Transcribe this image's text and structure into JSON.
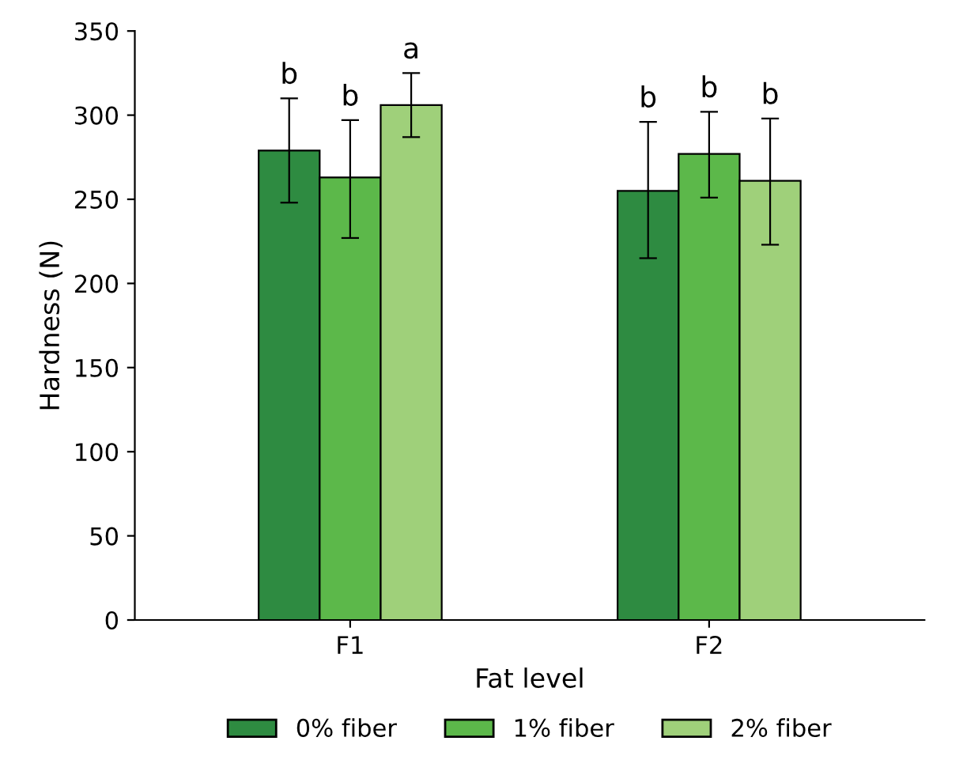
{
  "chart_data": {
    "type": "bar",
    "xlabel": "Fat level",
    "ylabel": "Hardness (N)",
    "categories": [
      "F1",
      "F2"
    ],
    "series": [
      {
        "name": "0% fiber",
        "color": "#2e8b41",
        "values": [
          279,
          255
        ],
        "errors": [
          [
            248,
            310
          ],
          [
            215,
            296
          ]
        ]
      },
      {
        "name": "1% fiber",
        "color": "#5cb84a",
        "values": [
          263,
          277
        ],
        "errors": [
          [
            227,
            297
          ],
          [
            251,
            302
          ]
        ]
      },
      {
        "name": "2% fiber",
        "color": "#9fd07a",
        "values": [
          306,
          261
        ],
        "errors": [
          [
            287,
            325
          ],
          [
            223,
            298
          ]
        ]
      }
    ],
    "annotations": [
      "b",
      "b",
      "a",
      "b",
      "b",
      "b"
    ],
    "ylim": [
      0,
      350
    ],
    "yticks": [
      0,
      50,
      100,
      150,
      200,
      250,
      300,
      350
    ],
    "grid": false,
    "legend": "bottom"
  }
}
